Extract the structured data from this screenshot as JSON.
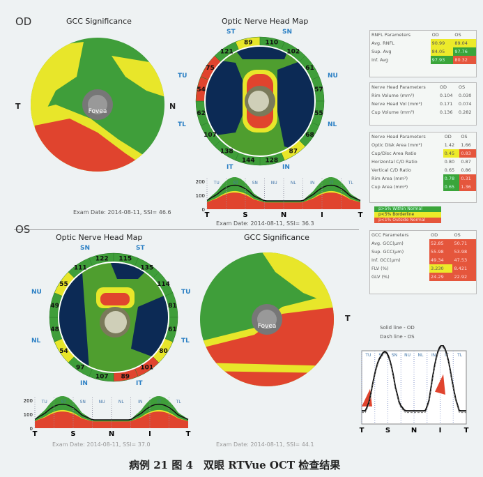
{
  "od": {
    "eye_label": "OD",
    "gcc_title": "GCC Significance",
    "onh_title": "Optic Nerve Head Map",
    "fovea": "Fovea",
    "gcc_side_left": "T",
    "gcc_side_right": "N",
    "exam_gcc": "Exam Date: 2014-08-11, SSI= 46.6",
    "exam_onh": "Exam Date: 2014-08-11, SSI= 36.3",
    "sectors": [
      {
        "id": "ST1",
        "v": "89",
        "c": "yellow"
      },
      {
        "id": "SN1",
        "v": "110",
        "c": "green"
      },
      {
        "id": "SN2",
        "v": "102",
        "c": "green"
      },
      {
        "id": "NU2",
        "v": "61",
        "c": "green"
      },
      {
        "id": "NU1",
        "v": "57",
        "c": "green"
      },
      {
        "id": "NL1",
        "v": "55",
        "c": "green"
      },
      {
        "id": "NL2",
        "v": "68",
        "c": "green"
      },
      {
        "id": "IN2",
        "v": "87",
        "c": "yellow"
      },
      {
        "id": "IN1",
        "v": "128",
        "c": "green"
      },
      {
        "id": "IT1",
        "v": "144",
        "c": "green"
      },
      {
        "id": "IT2",
        "v": "138",
        "c": "green"
      },
      {
        "id": "TL2",
        "v": "107",
        "c": "green"
      },
      {
        "id": "TL1",
        "v": "62",
        "c": "green"
      },
      {
        "id": "TU1",
        "v": "54",
        "c": "red"
      },
      {
        "id": "TU2",
        "v": "75",
        "c": "red"
      },
      {
        "id": "ST2",
        "v": "121",
        "c": "green"
      }
    ],
    "quadrants": [
      "ST",
      "SN",
      "NU",
      "NL",
      "IN",
      "IT",
      "TL",
      "TU"
    ]
  },
  "os": {
    "eye_label": "OS",
    "gcc_title": "GCC Significance",
    "onh_title": "Optic Nerve Head Map",
    "fovea": "Fovea",
    "gcc_side_right": "T",
    "exam_onh": "Exam Date: 2014-08-11, SSI= 37.0",
    "exam_gcc": "Exam Date: 2014-08-11, SSI= 44.1",
    "sectors": [
      {
        "id": "SN1",
        "v": "122",
        "c": "green"
      },
      {
        "id": "ST1",
        "v": "115",
        "c": "green"
      },
      {
        "id": "ST2",
        "v": "135",
        "c": "green"
      },
      {
        "id": "TU2",
        "v": "114",
        "c": "green"
      },
      {
        "id": "TU1",
        "v": "81",
        "c": "green"
      },
      {
        "id": "TL1",
        "v": "61",
        "c": "green"
      },
      {
        "id": "TL2",
        "v": "80",
        "c": "yellow"
      },
      {
        "id": "IT2",
        "v": "101",
        "c": "red"
      },
      {
        "id": "IT1",
        "v": "89",
        "c": "red"
      },
      {
        "id": "IN1",
        "v": "107",
        "c": "green"
      },
      {
        "id": "IN2",
        "v": "97",
        "c": "green"
      },
      {
        "id": "NL2",
        "v": "54",
        "c": "yellow"
      },
      {
        "id": "NL1",
        "v": "48",
        "c": "green"
      },
      {
        "id": "NU1",
        "v": "49",
        "c": "green"
      },
      {
        "id": "NU2",
        "v": "55",
        "c": "yellow"
      },
      {
        "id": "SN2",
        "v": "111",
        "c": "green"
      }
    ],
    "quadrants": [
      "SN",
      "ST",
      "TU",
      "TL",
      "IT",
      "IN",
      "NL",
      "NU"
    ]
  },
  "tsnit": {
    "bands": [
      "TU",
      "ST",
      "SN",
      "NU",
      "NL",
      "IN",
      "IT",
      "TL"
    ],
    "axis": [
      "T",
      "S",
      "N",
      "I",
      "T"
    ],
    "yticks": [
      "0",
      "100",
      "200"
    ]
  },
  "rnfl": {
    "title": "RNFL Parameters",
    "od": "OD",
    "os": "OS",
    "rows": [
      {
        "label": "Avg. RNFL",
        "od": "90.99",
        "odc": "y",
        "os": "89.04",
        "osc": "y"
      },
      {
        "label": "Sup. Avg",
        "od": "84.05",
        "odc": "y",
        "os": "97.76",
        "osc": "g"
      },
      {
        "label": "Inf. Avg",
        "od": "97.93",
        "odc": "g",
        "os": "80.32",
        "osc": "r"
      }
    ]
  },
  "nhp1": {
    "title": "Nerve Head Parameters",
    "od": "OD",
    "os": "OS",
    "rows": [
      {
        "label": "Rim Volume (mm³)",
        "od": "0.104",
        "os": "0.030"
      },
      {
        "label": "Nerve Head Vol (mm³)",
        "od": "0.171",
        "os": "0.074"
      },
      {
        "label": "Cup Volume (mm³)",
        "od": "0.136",
        "os": "0.282"
      }
    ]
  },
  "nhp2": {
    "title": "Nerve Head Parameters",
    "od": "OD",
    "os": "OS",
    "rows": [
      {
        "label": "Optic Disk Area (mm²)",
        "od": "1.42",
        "odc": "",
        "os": "1.66",
        "osc": ""
      },
      {
        "label": "Cup/Disc Area Ratio",
        "od": "0.45",
        "odc": "y",
        "os": "0.83",
        "osc": "r"
      },
      {
        "label": "Horizontal C/D Ratio",
        "od": "0.80",
        "odc": "",
        "os": "0.87",
        "osc": ""
      },
      {
        "label": "Vertical C/D Ratio",
        "od": "0.65",
        "odc": "",
        "os": "0.86",
        "osc": ""
      },
      {
        "label": "Rim Area (mm²)",
        "od": "0.78",
        "odc": "g",
        "os": "0.31",
        "osc": "r"
      },
      {
        "label": "Cup Area (mm²)",
        "od": "0.65",
        "odc": "g",
        "os": "1.36",
        "osc": "r"
      }
    ]
  },
  "legend": [
    {
      "label": "p>5% Within Normal",
      "c": "g"
    },
    {
      "label": "p<5% Borderline",
      "c": "y"
    },
    {
      "label": "p<1% Outside Normal",
      "c": "r"
    }
  ],
  "gcc": {
    "title": "GCC Parameters",
    "od": "OD",
    "os": "OS",
    "rows": [
      {
        "label": "Avg. GCC(µm)",
        "od": "52.85",
        "odc": "r",
        "os": "50.71",
        "osc": "r"
      },
      {
        "label": "Sup. GCC(µm)",
        "od": "55.98",
        "odc": "r",
        "os": "53.98",
        "osc": "r"
      },
      {
        "label": "Inf. GCC(µm)",
        "od": "49.34",
        "odc": "r",
        "os": "47.53",
        "osc": "r"
      },
      {
        "label": "FLV (%)",
        "od": "3.230",
        "odc": "y",
        "os": "8.421",
        "osc": "r"
      },
      {
        "label": "GLV (%)",
        "od": "24.29",
        "odc": "r",
        "os": "22.92",
        "osc": "r"
      }
    ]
  },
  "compare": {
    "solid": "Solid line - OD",
    "dash": "Dash line - OS"
  },
  "caption": "病例 21 图 4　双眼 RTVue OCT 检查结果",
  "colors": {
    "green": "#3f9e3a",
    "yellow": "#e8e62a",
    "red": "#e0442e",
    "blue": "#0c2a55"
  }
}
